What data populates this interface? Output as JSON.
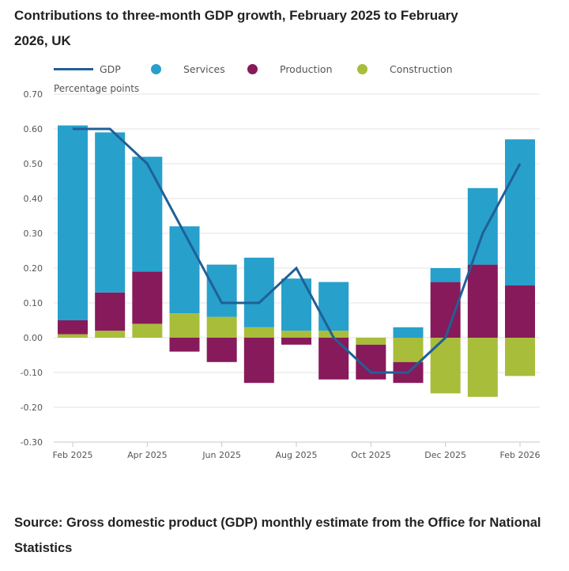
{
  "title": "Contributions to three-month GDP growth, February 2025 to February 2026, UK",
  "source": "Source: Gross domestic product (GDP) monthly estimate from the Office for National Statistics",
  "legend": [
    {
      "label": "GDP",
      "type": "line",
      "color": "#206095"
    },
    {
      "label": "Services",
      "type": "dot",
      "color": "#27a0cc"
    },
    {
      "label": "Production",
      "type": "dot",
      "color": "#871a5b"
    },
    {
      "label": "Construction",
      "type": "dot",
      "color": "#a8bd3a"
    }
  ],
  "chart_data": {
    "type": "bar",
    "stacked": true,
    "title": "Contributions to three-month GDP growth, February 2025 to February 2026, UK",
    "ylabel": "Percentage points",
    "xlabel": "",
    "ylim": [
      -0.3,
      0.7
    ],
    "yticks": [
      -0.3,
      -0.2,
      -0.1,
      0.0,
      0.1,
      0.2,
      0.3,
      0.4,
      0.5,
      0.6,
      0.7
    ],
    "ytick_labels": [
      "-0.30",
      "-0.20",
      "-0.10",
      "0.00",
      "0.10",
      "0.20",
      "0.30",
      "0.40",
      "0.50",
      "0.60",
      "0.70"
    ],
    "grid": true,
    "legend_position": "top",
    "categories": [
      "Feb 2025",
      "Mar 2025",
      "Apr 2025",
      "May 2025",
      "Jun 2025",
      "Jul 2025",
      "Aug 2025",
      "Sep 2025",
      "Oct 2025",
      "Nov 2025",
      "Dec 2025",
      "Jan 2026",
      "Feb 2026"
    ],
    "xtick_labels": [
      "Feb 2025",
      "Apr 2025",
      "Jun 2025",
      "Aug 2025",
      "Oct 2025",
      "Dec 2025",
      "Feb 2026"
    ],
    "xtick_indices": [
      0,
      2,
      4,
      6,
      8,
      10,
      12
    ],
    "series": [
      {
        "name": "Construction",
        "type": "bar",
        "color": "#a8bd3a",
        "values": [
          0.01,
          0.02,
          0.04,
          0.07,
          0.06,
          0.03,
          0.02,
          0.02,
          -0.02,
          -0.07,
          -0.16,
          -0.17,
          -0.11
        ]
      },
      {
        "name": "Production",
        "type": "bar",
        "color": "#871a5b",
        "values": [
          0.04,
          0.11,
          0.15,
          -0.04,
          -0.07,
          -0.13,
          -0.02,
          -0.12,
          -0.1,
          -0.06,
          0.16,
          0.21,
          0.15
        ]
      },
      {
        "name": "Services",
        "type": "bar",
        "color": "#27a0cc",
        "values": [
          0.56,
          0.46,
          0.33,
          0.25,
          0.15,
          0.2,
          0.15,
          0.14,
          0.0,
          0.03,
          0.04,
          0.22,
          0.42
        ]
      },
      {
        "name": "GDP",
        "type": "line",
        "color": "#206095",
        "values": [
          0.6,
          0.6,
          0.5,
          0.3,
          0.1,
          0.1,
          0.2,
          0.0,
          -0.1,
          -0.1,
          0.0,
          0.3,
          0.5
        ]
      }
    ]
  }
}
